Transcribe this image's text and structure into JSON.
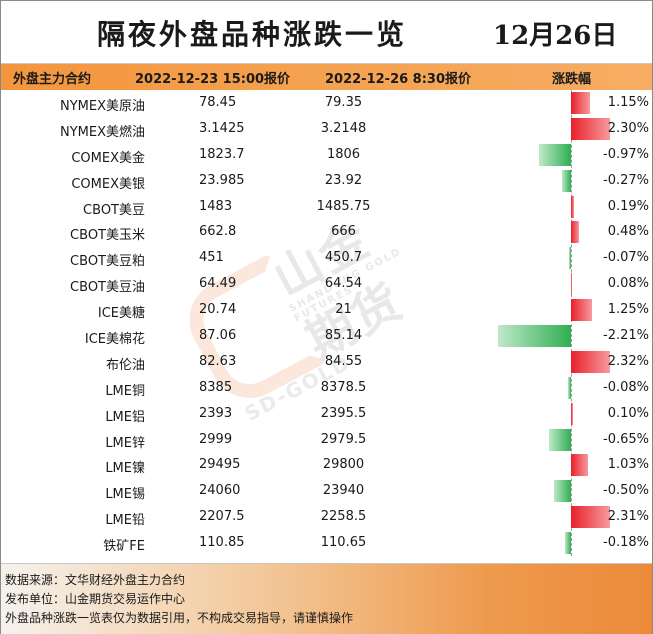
{
  "title": "隔夜外盘品种涨跌一览",
  "date": "12月26日",
  "columns": {
    "name": "外盘主力合约",
    "price1": "2022-12-23 15:00报价",
    "price2": "2022-12-26 8:30报价",
    "change": "涨跌幅"
  },
  "rows": [
    {
      "name": "NYMEX美原油",
      "p1": "78.45",
      "p2": "79.35",
      "pct": "1.15%",
      "value": 1.15
    },
    {
      "name": "NYMEX美燃油",
      "p1": "3.1425",
      "p2": "3.2148",
      "pct": "2.30%",
      "value": 2.3
    },
    {
      "name": "COMEX美金",
      "p1": "1823.7",
      "p2": "1806",
      "pct": "-0.97%",
      "value": -0.97
    },
    {
      "name": "COMEX美银",
      "p1": "23.985",
      "p2": "23.92",
      "pct": "-0.27%",
      "value": -0.27
    },
    {
      "name": "CBOT美豆",
      "p1": "1483",
      "p2": "1485.75",
      "pct": "0.19%",
      "value": 0.19
    },
    {
      "name": "CBOT美玉米",
      "p1": "662.8",
      "p2": "666",
      "pct": "0.48%",
      "value": 0.48
    },
    {
      "name": "CBOT美豆粕",
      "p1": "451",
      "p2": "450.7",
      "pct": "-0.07%",
      "value": -0.07
    },
    {
      "name": "CBOT美豆油",
      "p1": "64.49",
      "p2": "64.54",
      "pct": "0.08%",
      "value": 0.08
    },
    {
      "name": "ICE美糖",
      "p1": "20.74",
      "p2": "21",
      "pct": "1.25%",
      "value": 1.25
    },
    {
      "name": "ICE美棉花",
      "p1": "87.06",
      "p2": "85.14",
      "pct": "-2.21%",
      "value": -2.21
    },
    {
      "name": "布伦油",
      "p1": "82.63",
      "p2": "84.55",
      "pct": "2.32%",
      "value": 2.32
    },
    {
      "name": "LME铜",
      "p1": "8385",
      "p2": "8378.5",
      "pct": "-0.08%",
      "value": -0.08
    },
    {
      "name": "LME铝",
      "p1": "2393",
      "p2": "2395.5",
      "pct": "0.10%",
      "value": 0.1
    },
    {
      "name": "LME锌",
      "p1": "2999",
      "p2": "2979.5",
      "pct": "-0.65%",
      "value": -0.65
    },
    {
      "name": "LME镍",
      "p1": "29495",
      "p2": "29800",
      "pct": "1.03%",
      "value": 1.03
    },
    {
      "name": "LME锡",
      "p1": "24060",
      "p2": "23940",
      "pct": "-0.50%",
      "value": -0.5
    },
    {
      "name": "LME铅",
      "p1": "2207.5",
      "p2": "2258.5",
      "pct": "2.31%",
      "value": 2.31
    },
    {
      "name": "铁矿FE",
      "p1": "110.85",
      "p2": "110.65",
      "pct": "-0.18%",
      "value": -0.18
    }
  ],
  "watermark": {
    "brand": "山金期货",
    "sub": "SHANDONG GOLD FUTURES",
    "en": "SD-GOLD"
  },
  "footer": {
    "source": "数据来源：文华财经外盘主力合约",
    "publisher": "发布单位：山金期货交易运作中心",
    "disclaimer": "外盘品种涨跌一览表仅为数据引用，不构成交易指导，请谨慎操作"
  },
  "colors": {
    "header_orange": "#f3963e",
    "positive_red": "#e8202a",
    "negative_green": "#2fae52"
  }
}
